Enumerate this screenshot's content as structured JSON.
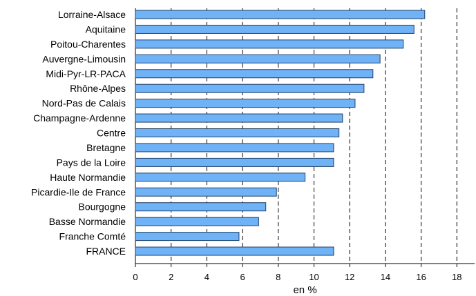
{
  "chart_data": {
    "type": "bar",
    "orientation": "horizontal",
    "categories": [
      "Lorraine-Alsace",
      "Aquitaine",
      "Poitou-Charentes",
      "Auvergne-Limousin",
      "Midi-Pyr-LR-PACA",
      "Rhône-Alpes",
      "Nord-Pas de Calais",
      "Champagne-Ardenne",
      "Centre",
      "Bretagne",
      "Pays de la Loire",
      "Haute Normandie",
      "Picardie-Ile de France",
      "Bourgogne",
      "Basse Normandie",
      "Franche Comté",
      "FRANCE"
    ],
    "values": [
      16.2,
      15.6,
      15.0,
      13.7,
      13.3,
      12.8,
      12.3,
      11.6,
      11.4,
      11.1,
      11.1,
      9.5,
      7.9,
      7.3,
      6.9,
      5.8,
      11.1
    ],
    "title": "",
    "xlabel": "en %",
    "ylabel": "",
    "xlim": [
      0,
      19
    ],
    "xticks": [
      0,
      2,
      4,
      6,
      8,
      10,
      12,
      14,
      16,
      18
    ],
    "grid": "vertical dashed at even ticks",
    "bar_color": "#6fb2f6",
    "bar_border_color": "#1f3f6a"
  }
}
